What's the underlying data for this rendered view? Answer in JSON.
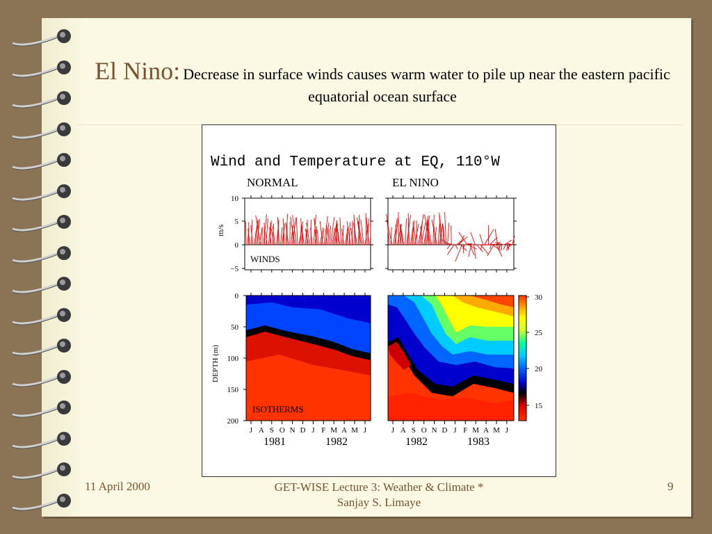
{
  "slide": {
    "title_lead": "El Nino:",
    "title_rest": "Decrease in surface winds causes warm water to pile up near the eastern pacific equatorial ocean surface"
  },
  "figure": {
    "title": "Wind and Temperature at EQ, 110°W",
    "panel_normal": "NORMAL",
    "panel_elnino": "EL NINO",
    "winds_label": "WINDS",
    "isotherms_label": "ISOTHERMS",
    "winds_ylabel": "m/s",
    "depth_ylabel": "DEPTH (m)",
    "winds_ticks": [
      "10",
      "5",
      "0",
      "−5"
    ],
    "depth_ticks": [
      "0",
      "50",
      "100",
      "150",
      "200"
    ],
    "colorbar_ticks": [
      "30",
      "25",
      "20",
      "15"
    ],
    "months": [
      "J",
      "A",
      "S",
      "O",
      "N",
      "D",
      "J",
      "F",
      "M",
      "A",
      "M",
      "J"
    ],
    "years_normal": [
      "1981",
      "1982"
    ],
    "years_elnino": [
      "1982",
      "1983"
    ]
  },
  "footer": {
    "date": "11 April 2000",
    "course": "GET-WISE  Lecture 3: Weather & Climate  * Sanjay S. Limaye",
    "page": "9"
  },
  "colors": {
    "wind_vectors": "#ff0000",
    "title_accent": "#7a5230",
    "page_bg": "#fbf8e3",
    "desk_bg": "#8b7355"
  }
}
